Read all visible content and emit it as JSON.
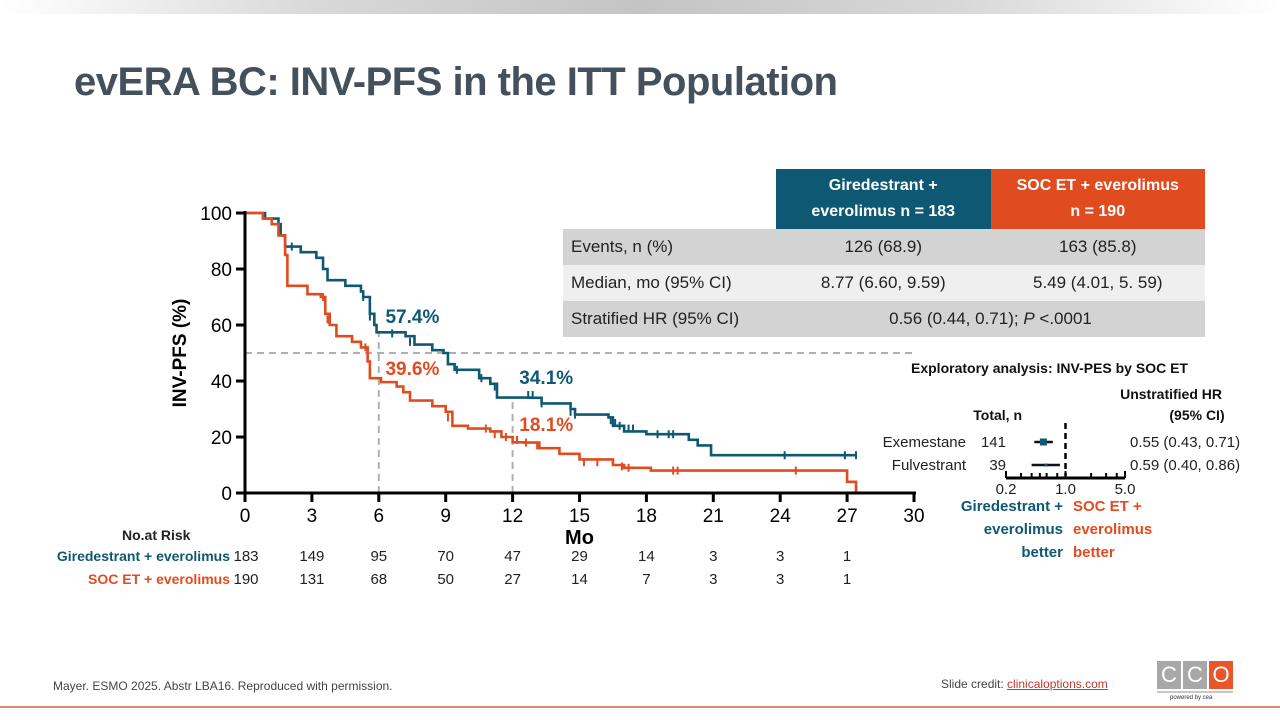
{
  "slide": {
    "title": "evERA BC: INV-PFS in the ITT Population",
    "footer_citation": "Mayer. ESMO 2025. Abstr LBA16. Reproduced with permission.",
    "slide_credit_label": "Slide credit: ",
    "slide_credit_link": "clinicaloptions.com",
    "logo_letters": [
      "C",
      "C",
      "O"
    ],
    "logo_tagline": "powered by cea"
  },
  "colors": {
    "giredestrant": "#0f5874",
    "soc": "#e04c20",
    "title": "#44515c",
    "reference_line": "#b0b0b0"
  },
  "results_table": {
    "headers": [
      "Giredestrant + everolimus  n = 183",
      "SOC ET + everolimus n = 190"
    ],
    "header_lines": [
      [
        "Giredestrant +",
        "everolimus  n = 183"
      ],
      [
        "SOC ET + everolimus",
        "n = 190"
      ]
    ],
    "rows": [
      {
        "label": "Events, n (%)",
        "giredestrant": "126 (68.9)",
        "soc": "163 (85.8)"
      },
      {
        "label": "Median, mo (95% CI)",
        "giredestrant": "8.77 (6.60, 9.59)",
        "soc": "5.49 (4.01, 5. 59)"
      },
      {
        "label": "Stratified HR (95% CI)",
        "combined_prefix": "0.56 (0.44, 0.71); ",
        "combined_p_italic": "P",
        "combined_suffix": " <.0001"
      }
    ]
  },
  "risk_table": {
    "title": "No.at Risk",
    "times": [
      0,
      3,
      6,
      9,
      12,
      15,
      18,
      21,
      24,
      27
    ],
    "rows": [
      {
        "label": "Giredestrant + everolimus",
        "values": [
          "183",
          "149",
          "95",
          "70",
          "47",
          "29",
          "14",
          "3",
          "3",
          "1"
        ]
      },
      {
        "label": "SOC ET + everolimus",
        "values": [
          "190",
          "131",
          "68",
          "50",
          "27",
          "14",
          "7",
          "3",
          "3",
          "1"
        ]
      }
    ]
  },
  "chart_data": {
    "type": "line",
    "subtype": "kaplan-meier",
    "title": "",
    "xlabel": "Mo",
    "ylabel": "INV-PFS (%)",
    "xlim": [
      0,
      30
    ],
    "ylim": [
      0,
      100
    ],
    "xticks": [
      0,
      3,
      6,
      9,
      12,
      15,
      18,
      21,
      24,
      27,
      30
    ],
    "yticks": [
      0,
      20,
      40,
      60,
      80,
      100
    ],
    "grid": false,
    "reference_lines": [
      {
        "type": "horizontal",
        "y": 50,
        "x_from": 0,
        "x_to": 30,
        "style": "dashed"
      },
      {
        "type": "vertical",
        "x": 6,
        "y_from": 0,
        "y_to": 57.4,
        "style": "dashed"
      },
      {
        "type": "vertical",
        "x": 12,
        "y_from": 0,
        "y_to": 34.1,
        "style": "dashed"
      }
    ],
    "annotations": [
      {
        "text": "57.4%",
        "series": "Giredestrant + everolimus",
        "x": 6,
        "y": 57.4
      },
      {
        "text": "39.6%",
        "series": "SOC ET + everolimus",
        "x": 6,
        "y": 39.6
      },
      {
        "text": "34.1%",
        "series": "Giredestrant + everolimus",
        "x": 12,
        "y": 34.1
      },
      {
        "text": "18.1%",
        "series": "SOC ET + everolimus",
        "x": 12,
        "y": 18.1
      }
    ],
    "series": [
      {
        "name": "Giredestrant + everolimus",
        "color": "#0f5874",
        "steps": [
          [
            0,
            100
          ],
          [
            0.9,
            98
          ],
          [
            1.5,
            96
          ],
          [
            1.6,
            92
          ],
          [
            1.8,
            88
          ],
          [
            2.5,
            86
          ],
          [
            3.2,
            84
          ],
          [
            3.5,
            80
          ],
          [
            3.7,
            76
          ],
          [
            4.5,
            74
          ],
          [
            5.2,
            72
          ],
          [
            5.3,
            70
          ],
          [
            5.6,
            64
          ],
          [
            5.8,
            60
          ],
          [
            5.9,
            57.4
          ],
          [
            7.2,
            56
          ],
          [
            7.6,
            53
          ],
          [
            8.4,
            51
          ],
          [
            8.9,
            50
          ],
          [
            9.1,
            46
          ],
          [
            9.4,
            44
          ],
          [
            10.5,
            41
          ],
          [
            11.0,
            39
          ],
          [
            11.3,
            34.1
          ],
          [
            12.8,
            34
          ],
          [
            13.3,
            32
          ],
          [
            14.6,
            30
          ],
          [
            14.8,
            28
          ],
          [
            16.3,
            27
          ],
          [
            16.5,
            24
          ],
          [
            17.0,
            22
          ],
          [
            18.0,
            21
          ],
          [
            19.9,
            19
          ],
          [
            20.3,
            17
          ],
          [
            20.9,
            13.5
          ]
        ],
        "end_x": 27.4,
        "censors": [
          [
            1.6,
            93
          ],
          [
            2.1,
            88
          ],
          [
            3.5,
            81
          ],
          [
            3.7,
            77
          ],
          [
            5.3,
            70
          ],
          [
            5.6,
            63
          ],
          [
            6.6,
            57
          ],
          [
            7.4,
            54
          ],
          [
            9.1,
            47
          ],
          [
            9.5,
            44
          ],
          [
            10.6,
            41
          ],
          [
            11.2,
            38
          ],
          [
            12.7,
            35
          ],
          [
            12.9,
            35
          ],
          [
            13.3,
            32
          ],
          [
            14.6,
            29
          ],
          [
            14.8,
            28
          ],
          [
            16.4,
            26
          ],
          [
            16.6,
            25
          ],
          [
            16.8,
            24
          ],
          [
            17.2,
            23
          ],
          [
            17.4,
            23
          ],
          [
            18.5,
            21
          ],
          [
            19.0,
            21
          ],
          [
            19.2,
            21
          ],
          [
            24.2,
            13.5
          ],
          [
            26.9,
            13.5
          ],
          [
            27.4,
            13.5
          ]
        ]
      },
      {
        "name": "SOC ET + everolimus",
        "color": "#e04c20",
        "steps": [
          [
            0,
            100
          ],
          [
            0.8,
            98
          ],
          [
            1.2,
            96
          ],
          [
            1.5,
            92
          ],
          [
            1.8,
            85
          ],
          [
            1.9,
            74
          ],
          [
            2.8,
            71
          ],
          [
            3.4,
            70
          ],
          [
            3.6,
            64
          ],
          [
            3.8,
            60
          ],
          [
            4.1,
            56
          ],
          [
            4.8,
            54
          ],
          [
            5.2,
            52
          ],
          [
            5.5,
            47
          ],
          [
            5.6,
            41
          ],
          [
            6.1,
            39.6
          ],
          [
            6.8,
            38
          ],
          [
            7.1,
            36
          ],
          [
            7.4,
            33
          ],
          [
            8.4,
            31
          ],
          [
            9.0,
            29
          ],
          [
            9.3,
            24
          ],
          [
            10.0,
            23
          ],
          [
            11.0,
            22
          ],
          [
            11.5,
            20
          ],
          [
            12.0,
            18.1
          ],
          [
            12.5,
            18
          ],
          [
            13.2,
            16
          ],
          [
            14.1,
            14
          ],
          [
            15.0,
            12
          ],
          [
            16.5,
            10
          ],
          [
            17.0,
            9
          ],
          [
            18.2,
            8
          ],
          [
            27.0,
            4
          ],
          [
            27.4,
            0
          ]
        ],
        "end_x": 27.4,
        "censors": [
          [
            3.5,
            70
          ],
          [
            3.6,
            66
          ],
          [
            3.7,
            62
          ],
          [
            5.4,
            52
          ],
          [
            5.5,
            50
          ],
          [
            9.1,
            27
          ],
          [
            10.8,
            23
          ],
          [
            11.2,
            21
          ],
          [
            11.7,
            20
          ],
          [
            12.2,
            19
          ],
          [
            12.6,
            18
          ],
          [
            13.1,
            17
          ],
          [
            15.2,
            11
          ],
          [
            15.8,
            11
          ],
          [
            16.9,
            9.5
          ],
          [
            17.2,
            9
          ],
          [
            19.2,
            8
          ],
          [
            19.4,
            8
          ],
          [
            24.7,
            8
          ]
        ]
      }
    ]
  },
  "forest_plot": {
    "title": "Exploratory analysis: INV-PES by SOC ET",
    "col_total": "Total, n",
    "col_hr_line1": "Unstratified HR",
    "col_hr_line2": "(95% CI)",
    "scale": "log",
    "xlim": [
      0.2,
      5.0
    ],
    "xtick_labels": [
      "0.2",
      "1.0",
      "5.0"
    ],
    "reference": 1.0,
    "left_label": [
      "Giredestrant +",
      "everolimus",
      "better"
    ],
    "right_label": [
      "SOC ET +",
      "everolimus",
      "better"
    ],
    "rows": [
      {
        "label": "Exemestane",
        "n": "141",
        "hr": 0.55,
        "lo": 0.43,
        "hi": 0.71,
        "text": "0.55 (0.43, 0.71)"
      },
      {
        "label": "Fulvestrant",
        "n": "39",
        "hr": 0.59,
        "lo": 0.4,
        "hi": 0.86,
        "text": "0.59 (0.40, 0.86)"
      }
    ]
  }
}
